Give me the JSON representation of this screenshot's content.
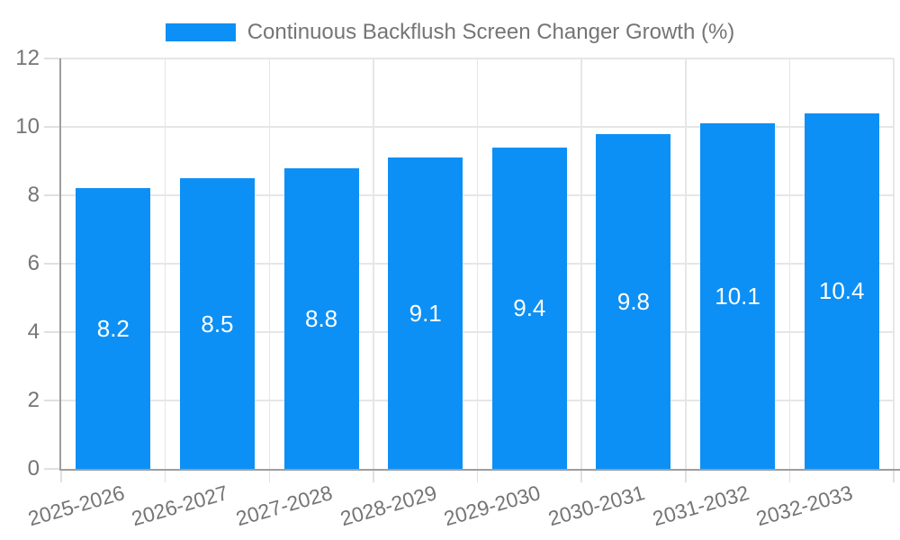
{
  "chart_data": {
    "type": "bar",
    "title": "Continuous Backflush Screen Changer Growth (%)",
    "series_name": "Continuous Backflush Screen Changer Growth (%)",
    "categories": [
      "2025-2026",
      "2026-2027",
      "2027-2028",
      "2028-2029",
      "2029-2030",
      "2030-2031",
      "2031-2032",
      "2032-2033"
    ],
    "values": [
      8.2,
      8.5,
      8.8,
      9.1,
      9.4,
      9.8,
      10.1,
      10.4
    ],
    "data_labels": [
      "8.2",
      "8.5",
      "8.8",
      "9.1",
      "9.4",
      "9.8",
      "10.1",
      "10.4"
    ],
    "xlabel": "",
    "ylabel": "",
    "ylim": [
      0,
      12
    ],
    "yticks": [
      0,
      2,
      4,
      6,
      8,
      10,
      12
    ],
    "grid": true,
    "legend_position": "top-center",
    "data_label_position": "inside-middle",
    "x_tick_rotation_deg": -16,
    "colors": {
      "bar": "#0d90f5",
      "grid": "#e6e6e6",
      "tick": "#e0e0e0",
      "axis": "#9e9e9e",
      "text": "#757575",
      "data_label": "#ffffff",
      "background": "#ffffff"
    }
  }
}
